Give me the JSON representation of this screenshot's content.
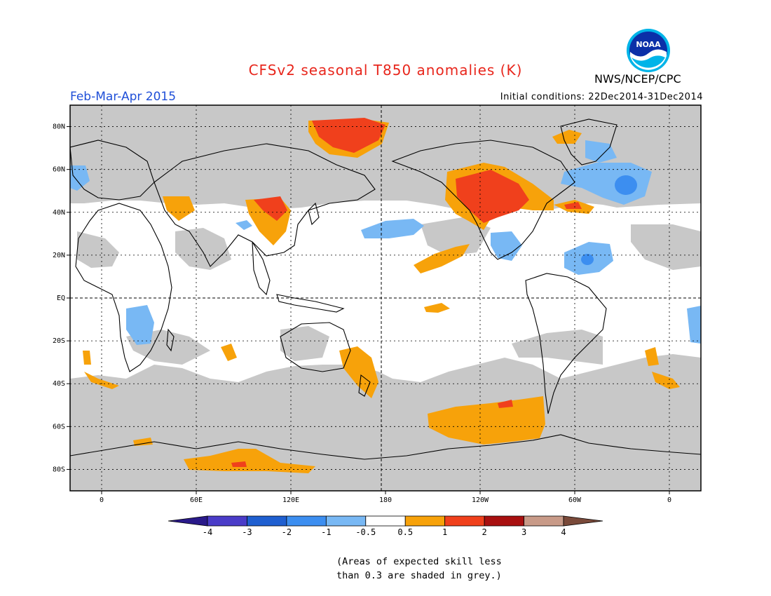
{
  "title": "CFSv2 seasonal T850 anomalies (K)",
  "season": "Feb-Mar-Apr 2015",
  "initial_conditions": "Initial conditions: 22Dec2014-31Dec2014",
  "agency": "NWS/NCEP/CPC",
  "logo_text": "NOAA",
  "colors": {
    "title": "#e8261c",
    "season": "#1f4fd8",
    "skill_grey": "#c8c8c8",
    "frame": "#000000"
  },
  "map": {
    "lat_labels": [
      "80N",
      "60N",
      "40N",
      "20N",
      "EQ",
      "20S",
      "40S",
      "60S",
      "80S"
    ],
    "lon_labels": [
      "0",
      "60E",
      "120E",
      "180",
      "120W",
      "60W",
      "0"
    ],
    "lat_values": [
      80,
      60,
      40,
      20,
      0,
      -20,
      -40,
      -60,
      -80
    ],
    "lon_values": [
      0,
      60,
      120,
      180,
      240,
      300,
      360
    ],
    "lon_range": [
      -20,
      380
    ],
    "lat_range": [
      -90,
      90
    ]
  },
  "legend": {
    "ticks": [
      "-4",
      "-3",
      "-2",
      "-1",
      "-0.5",
      "0.5",
      "1",
      "2",
      "3",
      "4"
    ],
    "bins": [
      {
        "label": "< -4",
        "color": "#2a1a8a"
      },
      {
        "label": "-4 to -3",
        "color": "#4a3cc8"
      },
      {
        "label": "-3 to -2",
        "color": "#1f5fd0"
      },
      {
        "label": "-2 to -1",
        "color": "#3c8ef0"
      },
      {
        "label": "-1 to -0.5",
        "color": "#78b8f4"
      },
      {
        "label": "-0.5 to 0.5",
        "color": "#ffffff"
      },
      {
        "label": "0.5 to 1",
        "color": "#f7a20a"
      },
      {
        "label": "1 to 2",
        "color": "#f0401c"
      },
      {
        "label": "2 to 3",
        "color": "#a81010"
      },
      {
        "label": "3 to 4",
        "color": "#c89a88"
      },
      {
        "label": "> 4",
        "color": "#7a4a3a"
      }
    ]
  },
  "note": [
    "(Areas of expected skill less",
    "than 0.3 are shaded in grey.)"
  ]
}
